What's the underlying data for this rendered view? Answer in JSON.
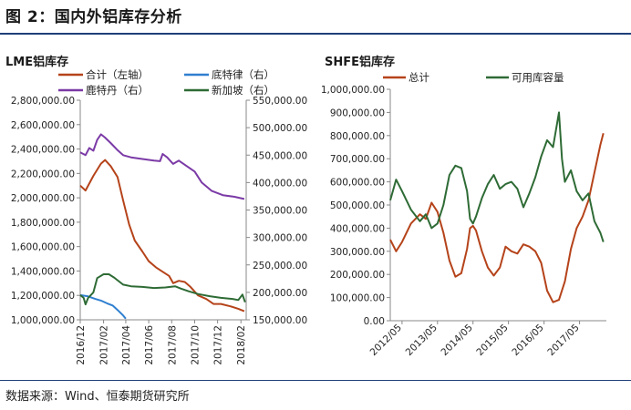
{
  "figure": {
    "title": "图 2：国内外铝库存分析",
    "source": "数据来源：Wind、恒泰期货研究所"
  },
  "chart_data": [
    {
      "type": "line",
      "title": "LME铝库存",
      "x_ticks": [
        "2016/12",
        "2017/02",
        "2017/04",
        "2017/06",
        "2017/08",
        "2017/10",
        "2017/12",
        "2018/02"
      ],
      "y_left": {
        "lim": [
          1000000,
          2800000
        ],
        "step": 200000,
        "ticks": [
          "1,000,000.00",
          "1,200,000.00",
          "1,400,000.00",
          "1,600,000.00",
          "1,800,000.00",
          "2,000,000.00",
          "2,200,000.00",
          "2,400,000.00",
          "2,600,000.00",
          "2,800,000.00"
        ]
      },
      "y_right": {
        "lim": [
          150000,
          550000
        ],
        "step": 50000,
        "ticks": [
          "150,000.00",
          "200,000.00",
          "250,000.00",
          "300,000.00",
          "350,000.00",
          "400,000.00",
          "450,000.00",
          "500,000.00",
          "550,000.00"
        ]
      },
      "legend": [
        "合计（左轴）",
        "底特律（右）",
        "鹿特丹（右）",
        "新加坡（右）"
      ],
      "series": [
        {
          "name": "合计（左轴）",
          "color": "#b5431a",
          "axis": "left",
          "points": [
            [
              "2016-12-01",
              2100000
            ],
            [
              "2016-12-15",
              2060000
            ],
            [
              "2017-01-05",
              2180000
            ],
            [
              "2017-01-25",
              2280000
            ],
            [
              "2017-02-05",
              2310000
            ],
            [
              "2017-02-20",
              2260000
            ],
            [
              "2017-03-10",
              2170000
            ],
            [
              "2017-03-25",
              1980000
            ],
            [
              "2017-04-10",
              1780000
            ],
            [
              "2017-04-25",
              1650000
            ],
            [
              "2017-05-15",
              1560000
            ],
            [
              "2017-06-01",
              1480000
            ],
            [
              "2017-06-20",
              1430000
            ],
            [
              "2017-07-10",
              1390000
            ],
            [
              "2017-07-25",
              1360000
            ],
            [
              "2017-08-05",
              1300000
            ],
            [
              "2017-08-20",
              1320000
            ],
            [
              "2017-09-05",
              1310000
            ],
            [
              "2017-09-20",
              1270000
            ],
            [
              "2017-10-10",
              1200000
            ],
            [
              "2017-11-01",
              1170000
            ],
            [
              "2017-11-20",
              1130000
            ],
            [
              "2017-12-10",
              1130000
            ],
            [
              "2018-01-05",
              1110000
            ],
            [
              "2018-01-25",
              1090000
            ],
            [
              "2018-02-10",
              1070000
            ]
          ]
        },
        {
          "name": "底特律（右）",
          "color": "#2f7fd0",
          "axis": "right",
          "points": [
            [
              "2016-12-01",
              195000
            ],
            [
              "2016-12-20",
              193000
            ],
            [
              "2017-01-10",
              188000
            ],
            [
              "2017-01-25",
              185000
            ],
            [
              "2017-02-10",
              180000
            ],
            [
              "2017-02-25",
              176000
            ],
            [
              "2017-03-10",
              168000
            ],
            [
              "2017-03-25",
              158000
            ],
            [
              "2017-04-01",
              152000
            ]
          ]
        },
        {
          "name": "鹿特丹（右）",
          "color": "#7b3aa6",
          "axis": "right",
          "points": [
            [
              "2016-12-01",
              455000
            ],
            [
              "2016-12-15",
              450000
            ],
            [
              "2016-12-25",
              463000
            ],
            [
              "2017-01-05",
              458000
            ],
            [
              "2017-01-15",
              478000
            ],
            [
              "2017-01-25",
              488000
            ],
            [
              "2017-02-05",
              482000
            ],
            [
              "2017-02-20",
              472000
            ],
            [
              "2017-03-10",
              459000
            ],
            [
              "2017-03-25",
              450000
            ],
            [
              "2017-04-15",
              446000
            ],
            [
              "2017-05-15",
              443000
            ],
            [
              "2017-06-15",
              440000
            ],
            [
              "2017-07-01",
              439000
            ],
            [
              "2017-07-08",
              452000
            ],
            [
              "2017-07-20",
              446000
            ],
            [
              "2017-08-05",
              434000
            ],
            [
              "2017-08-20",
              440000
            ],
            [
              "2017-09-10",
              430000
            ],
            [
              "2017-10-01",
              420000
            ],
            [
              "2017-10-20",
              400000
            ],
            [
              "2017-11-15",
              385000
            ],
            [
              "2017-12-15",
              377000
            ],
            [
              "2018-01-15",
              374000
            ],
            [
              "2018-02-10",
              370000
            ]
          ]
        },
        {
          "name": "新加坡（右）",
          "color": "#2e6b35",
          "axis": "right",
          "points": [
            [
              "2016-12-01",
              195000
            ],
            [
              "2016-12-10",
              190000
            ],
            [
              "2016-12-15",
              178000
            ],
            [
              "2016-12-22",
              190000
            ],
            [
              "2017-01-05",
              200000
            ],
            [
              "2017-01-15",
              226000
            ],
            [
              "2017-02-01",
              233000
            ],
            [
              "2017-02-15",
              233000
            ],
            [
              "2017-03-01",
              227000
            ],
            [
              "2017-03-25",
              214000
            ],
            [
              "2017-04-15",
              211000
            ],
            [
              "2017-05-15",
              210000
            ],
            [
              "2017-06-15",
              208000
            ],
            [
              "2017-07-15",
              209000
            ],
            [
              "2017-08-10",
              211000
            ],
            [
              "2017-08-25",
              207000
            ],
            [
              "2017-09-15",
              202000
            ],
            [
              "2017-10-10",
              197000
            ],
            [
              "2017-11-10",
              193000
            ],
            [
              "2017-12-10",
              190000
            ],
            [
              "2018-01-10",
              188000
            ],
            [
              "2018-01-25",
              186000
            ],
            [
              "2018-02-05",
              196000
            ],
            [
              "2018-02-12",
              182000
            ]
          ]
        }
      ]
    },
    {
      "type": "line",
      "title": "SHFE铝库存",
      "x_ticks": [
        "2012/05",
        "2013/05",
        "2014/05",
        "2015/05",
        "2016/05",
        "2017/05"
      ],
      "y": {
        "lim": [
          0,
          1000000
        ],
        "step": 100000,
        "ticks": [
          "0.00",
          "100,000.00",
          "200,000.00",
          "300,000.00",
          "400,000.00",
          "500,000.00",
          "600,000.00",
          "700,000.00",
          "800,000.00",
          "900,000.00",
          "1,000,000.00"
        ]
      },
      "legend": [
        "总计",
        "可用库容量"
      ],
      "series": [
        {
          "name": "总计",
          "color": "#b5431a",
          "points": [
            [
              "2012-01-01",
              350000
            ],
            [
              "2012-03-01",
              300000
            ],
            [
              "2012-05-01",
              340000
            ],
            [
              "2012-08-01",
              420000
            ],
            [
              "2012-11-01",
              460000
            ],
            [
              "2013-01-01",
              440000
            ],
            [
              "2013-03-01",
              510000
            ],
            [
              "2013-05-01",
              470000
            ],
            [
              "2013-07-01",
              380000
            ],
            [
              "2013-09-01",
              260000
            ],
            [
              "2013-11-01",
              190000
            ],
            [
              "2014-01-01",
              205000
            ],
            [
              "2014-03-01",
              310000
            ],
            [
              "2014-04-01",
              400000
            ],
            [
              "2014-05-01",
              410000
            ],
            [
              "2014-06-01",
              390000
            ],
            [
              "2014-08-01",
              300000
            ],
            [
              "2014-10-01",
              230000
            ],
            [
              "2014-12-01",
              195000
            ],
            [
              "2015-02-01",
              230000
            ],
            [
              "2015-04-01",
              320000
            ],
            [
              "2015-06-01",
              300000
            ],
            [
              "2015-08-01",
              290000
            ],
            [
              "2015-10-01",
              330000
            ],
            [
              "2015-12-01",
              320000
            ],
            [
              "2016-02-01",
              300000
            ],
            [
              "2016-04-01",
              250000
            ],
            [
              "2016-06-01",
              130000
            ],
            [
              "2016-08-01",
              80000
            ],
            [
              "2016-10-01",
              90000
            ],
            [
              "2016-12-01",
              170000
            ],
            [
              "2017-02-01",
              310000
            ],
            [
              "2017-04-01",
              400000
            ],
            [
              "2017-06-01",
              450000
            ],
            [
              "2017-08-01",
              520000
            ],
            [
              "2017-10-01",
              640000
            ],
            [
              "2017-12-01",
              760000
            ],
            [
              "2018-01-01",
              810000
            ]
          ]
        },
        {
          "name": "可用库容量",
          "color": "#2e6b35",
          "points": [
            [
              "2012-01-01",
              520000
            ],
            [
              "2012-03-01",
              610000
            ],
            [
              "2012-05-01",
              560000
            ],
            [
              "2012-08-01",
              480000
            ],
            [
              "2012-11-01",
              430000
            ],
            [
              "2013-01-01",
              460000
            ],
            [
              "2013-03-01",
              400000
            ],
            [
              "2013-05-01",
              420000
            ],
            [
              "2013-07-01",
              500000
            ],
            [
              "2013-09-01",
              630000
            ],
            [
              "2013-11-01",
              670000
            ],
            [
              "2014-01-01",
              660000
            ],
            [
              "2014-03-01",
              560000
            ],
            [
              "2014-04-01",
              440000
            ],
            [
              "2014-05-01",
              420000
            ],
            [
              "2014-06-01",
              450000
            ],
            [
              "2014-08-01",
              530000
            ],
            [
              "2014-10-01",
              590000
            ],
            [
              "2014-12-01",
              630000
            ],
            [
              "2015-02-01",
              570000
            ],
            [
              "2015-04-01",
              590000
            ],
            [
              "2015-06-01",
              600000
            ],
            [
              "2015-08-01",
              570000
            ],
            [
              "2015-10-01",
              490000
            ],
            [
              "2015-12-01",
              550000
            ],
            [
              "2016-02-01",
              620000
            ],
            [
              "2016-04-01",
              710000
            ],
            [
              "2016-06-01",
              780000
            ],
            [
              "2016-08-01",
              750000
            ],
            [
              "2016-10-01",
              900000
            ],
            [
              "2016-11-01",
              700000
            ],
            [
              "2016-12-01",
              600000
            ],
            [
              "2017-02-01",
              650000
            ],
            [
              "2017-04-01",
              560000
            ],
            [
              "2017-06-01",
              520000
            ],
            [
              "2017-08-01",
              550000
            ],
            [
              "2017-10-01",
              430000
            ],
            [
              "2017-12-01",
              380000
            ],
            [
              "2018-01-01",
              340000
            ]
          ]
        }
      ]
    }
  ]
}
